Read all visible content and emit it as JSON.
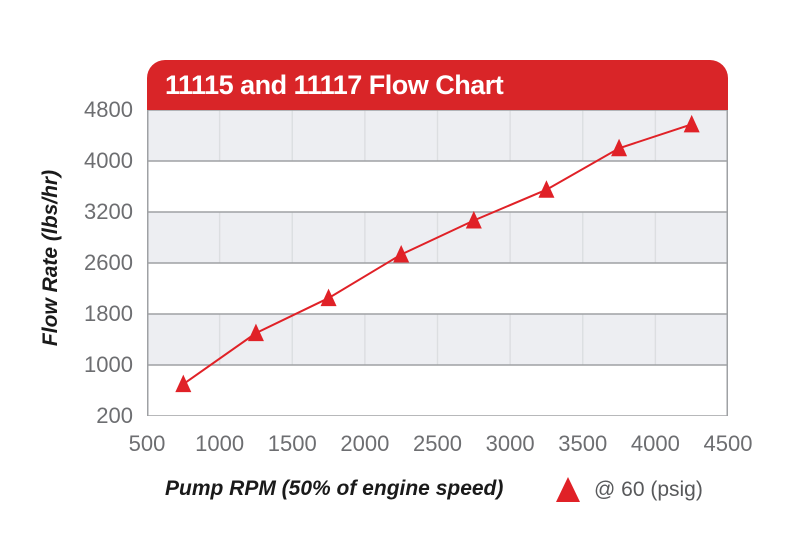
{
  "header": {
    "title": "11115 and 11117 Flow Chart"
  },
  "colors": {
    "banner_red": "#d92528",
    "series_red": "#e02127",
    "band_gray": "#edeef2",
    "grid_line": "#9fa1a4",
    "band_divider": "#dcdee1",
    "tick_text": "#6d6e71",
    "legend_text": "#58595b"
  },
  "chart_data": {
    "type": "line",
    "title": "11115 and 11117 Flow Chart",
    "xlabel": "Pump RPM (50% of engine speed)",
    "ylabel": "Flow Rate (lbs/hr)",
    "x_ticks": [
      500,
      1000,
      1500,
      2000,
      2500,
      3000,
      3500,
      4000,
      4500
    ],
    "y_ticks": [
      4800,
      4000,
      3200,
      2600,
      1800,
      1000,
      200
    ],
    "xlim": [
      500,
      4500
    ],
    "ylim_labels": [
      200,
      4800
    ],
    "grid": "alternating horizontal bands with vertical dividers in shaded bands, legend bottom-right",
    "legend": [
      {
        "label": "@ 60 (psig)",
        "marker": "triangle-up",
        "color": "#e02127"
      }
    ],
    "series": [
      {
        "name": "@ 60 (psig)",
        "x": [
          750,
          1250,
          1750,
          2250,
          2750,
          3250,
          3750,
          4250
        ],
        "y": [
          700,
          1500,
          2050,
          2700,
          3100,
          3550,
          4200,
          4575
        ]
      }
    ]
  }
}
